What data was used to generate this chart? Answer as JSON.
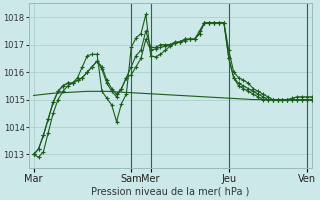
{
  "background_color": "#cce8e8",
  "grid_color": "#b0d4d0",
  "line_color": "#1a5c1a",
  "title": "Pression niveau de la mer( hPa )",
  "ylim": [
    1012.5,
    1018.5
  ],
  "yticks": [
    1013,
    1014,
    1015,
    1016,
    1017,
    1018
  ],
  "xtick_labels": [
    "Mar",
    "Sam",
    "Mer",
    "Jeu",
    "Ven"
  ],
  "xtick_pos": [
    0,
    20,
    24,
    40,
    56
  ],
  "xlim": [
    -1,
    57
  ],
  "n_total": 58,
  "series1": [
    1013.0,
    1012.9,
    1013.1,
    1013.8,
    1014.5,
    1015.0,
    1015.3,
    1015.5,
    1015.6,
    1015.8,
    1016.2,
    1016.6,
    1016.65,
    1016.65,
    1015.3,
    1015.05,
    1014.8,
    1014.2,
    1014.85,
    1015.2,
    1016.9,
    1017.25,
    1017.4,
    1018.1,
    1016.6,
    1016.55,
    1016.65,
    1016.8,
    1016.95,
    1017.05,
    1017.1,
    1017.15,
    1017.2,
    1017.2,
    1017.5,
    1017.8,
    1017.8,
    1017.8,
    1017.8,
    1017.8,
    1016.5,
    1015.8,
    1015.5,
    1015.4,
    1015.3,
    1015.2,
    1015.1,
    1015.0,
    1015.0,
    1015.0,
    1015.0,
    1015.0,
    1015.0,
    1015.05,
    1015.1,
    1015.1,
    1015.1,
    1015.1
  ],
  "series2": [
    1013.0,
    1013.2,
    1013.7,
    1014.3,
    1014.9,
    1015.3,
    1015.5,
    1015.6,
    1015.6,
    1015.7,
    1015.8,
    1016.0,
    1016.2,
    1016.4,
    1016.1,
    1015.6,
    1015.3,
    1015.1,
    1015.4,
    1015.8,
    1016.2,
    1016.6,
    1016.8,
    1017.5,
    1016.9,
    1016.9,
    1017.0,
    1017.0,
    1017.0,
    1017.1,
    1017.1,
    1017.2,
    1017.2,
    1017.2,
    1017.4,
    1017.8,
    1017.8,
    1017.8,
    1017.8,
    1017.8,
    1016.5,
    1015.8,
    1015.6,
    1015.5,
    1015.4,
    1015.3,
    1015.2,
    1015.1,
    1015.0,
    1015.0,
    1015.0,
    1015.0,
    1015.0,
    1015.0,
    1015.0,
    1015.0,
    1015.0,
    1015.0
  ],
  "series3": [
    1013.0,
    1013.2,
    1013.7,
    1014.3,
    1014.9,
    1015.3,
    1015.5,
    1015.6,
    1015.6,
    1015.7,
    1015.8,
    1016.0,
    1016.2,
    1016.4,
    1016.2,
    1015.7,
    1015.4,
    1015.2,
    1015.4,
    1015.8,
    1015.9,
    1016.2,
    1016.5,
    1017.2,
    1016.8,
    1016.85,
    1016.9,
    1016.95,
    1017.0,
    1017.05,
    1017.1,
    1017.2,
    1017.2,
    1017.2,
    1017.4,
    1017.8,
    1017.8,
    1017.8,
    1017.8,
    1017.8,
    1016.8,
    1016.0,
    1015.8,
    1015.7,
    1015.6,
    1015.4,
    1015.3,
    1015.2,
    1015.1,
    1015.0,
    1015.0,
    1015.0,
    1015.0,
    1015.0,
    1015.0,
    1015.0,
    1015.0,
    1015.0
  ],
  "series_flat": [
    1015.15,
    1015.17,
    1015.19,
    1015.21,
    1015.23,
    1015.24,
    1015.25,
    1015.26,
    1015.27,
    1015.28,
    1015.29,
    1015.3,
    1015.3,
    1015.3,
    1015.3,
    1015.3,
    1015.29,
    1015.28,
    1015.27,
    1015.26,
    1015.25,
    1015.24,
    1015.23,
    1015.22,
    1015.21,
    1015.2,
    1015.19,
    1015.18,
    1015.17,
    1015.16,
    1015.15,
    1015.14,
    1015.13,
    1015.12,
    1015.11,
    1015.1,
    1015.09,
    1015.08,
    1015.07,
    1015.06,
    1015.05,
    1015.04,
    1015.03,
    1015.02,
    1015.01,
    1015.0,
    1015.0,
    1015.0,
    1015.0,
    1015.0,
    1015.0,
    1015.0,
    1015.0,
    1015.0,
    1015.0,
    1015.0,
    1015.0,
    1015.0
  ],
  "vline_positions": [
    20,
    24,
    40,
    56
  ],
  "marker_size": 3.0
}
